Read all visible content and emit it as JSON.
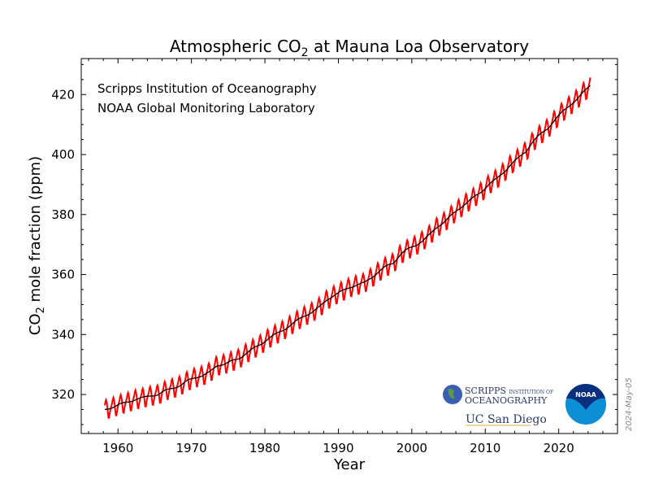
{
  "chart_data": {
    "type": "line",
    "title_main": "Atmospheric CO",
    "title_sub": "2",
    "title_rest": " at Mauna Loa Observatory",
    "xlabel": "Year",
    "ylabel_main": "CO",
    "ylabel_sub": "2",
    "ylabel_rest": " mole fraction (ppm)",
    "xlim": [
      1955,
      2028
    ],
    "ylim": [
      307,
      432
    ],
    "xticks": [
      1960,
      1970,
      1980,
      1990,
      2000,
      2010,
      2020
    ],
    "yticks": [
      320,
      340,
      360,
      380,
      400,
      420
    ],
    "grid": false,
    "annotations": [
      "Scripps Institution of Oceanography",
      "NOAA Global Monitoring Laboratory"
    ],
    "date_stamp": "2024-May-05",
    "colors": {
      "monthly": "#ff0000",
      "trend": "#000000"
    },
    "years": [
      1958,
      1959,
      1960,
      1961,
      1962,
      1963,
      1964,
      1965,
      1966,
      1967,
      1968,
      1969,
      1970,
      1971,
      1972,
      1973,
      1974,
      1975,
      1976,
      1977,
      1978,
      1979,
      1980,
      1981,
      1982,
      1983,
      1984,
      1985,
      1986,
      1987,
      1988,
      1989,
      1990,
      1991,
      1992,
      1993,
      1994,
      1995,
      1996,
      1997,
      1998,
      1999,
      2000,
      2001,
      2002,
      2003,
      2004,
      2005,
      2006,
      2007,
      2008,
      2009,
      2010,
      2011,
      2012,
      2013,
      2014,
      2015,
      2016,
      2017,
      2018,
      2019,
      2020,
      2021,
      2022,
      2023,
      2024
    ],
    "annual_trend_ppm": [
      315.2,
      315.98,
      316.91,
      317.64,
      318.45,
      318.99,
      319.62,
      320.04,
      321.37,
      322.18,
      323.05,
      324.62,
      325.68,
      326.32,
      327.46,
      329.68,
      330.19,
      331.13,
      332.03,
      333.84,
      335.41,
      336.84,
      338.76,
      340.12,
      341.48,
      343.15,
      344.87,
      346.35,
      347.61,
      349.31,
      351.69,
      353.2,
      354.45,
      355.7,
      356.54,
      357.21,
      358.96,
      360.97,
      362.74,
      363.88,
      366.84,
      368.54,
      369.71,
      371.32,
      373.45,
      375.98,
      377.7,
      379.98,
      382.09,
      384.02,
      385.83,
      387.64,
      390.1,
      391.85,
      394.06,
      396.74,
      398.81,
      401.01,
      404.41,
      406.76,
      408.72,
      411.65,
      414.21,
      416.41,
      418.53,
      421.08,
      423.6
    ],
    "seasonal_cycle_ppm": [
      0.0,
      0.7,
      1.4,
      2.6,
      3.1,
      2.4,
      0.8,
      -1.3,
      -3.1,
      -3.2,
      -1.9,
      -0.8
    ],
    "monthly_range": {
      "start": "1958-03",
      "end": "2024-04"
    },
    "logos": [
      "SCRIPPS INSTITUTION OF OCEANOGRAPHY",
      "UC San Diego",
      "NOAA"
    ]
  }
}
